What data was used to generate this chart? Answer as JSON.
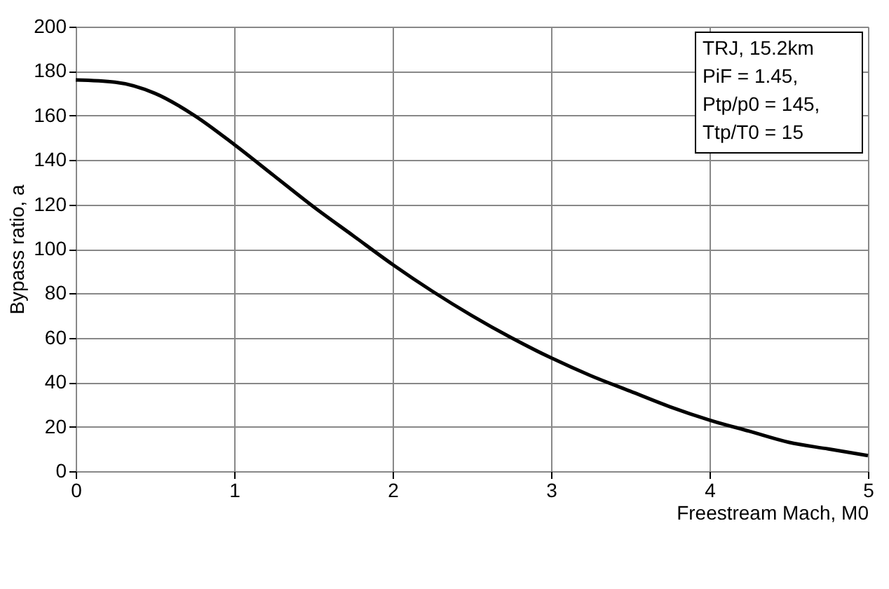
{
  "chart_data": {
    "type": "line",
    "xlabel": "Freestream Mach, M0",
    "ylabel": "Bypass ratio, a",
    "x": [
      0,
      0.25,
      0.5,
      0.75,
      1,
      1.25,
      1.5,
      1.75,
      2,
      2.25,
      2.5,
      2.75,
      3,
      3.25,
      3.5,
      3.75,
      4,
      4.25,
      4.5,
      4.75,
      5
    ],
    "series": [
      {
        "color": "#000000",
        "values": [
          176,
          175,
          170,
          160,
          147,
          133,
          119,
          106,
          93,
          81,
          70,
          60,
          51,
          43,
          36,
          29,
          23,
          18,
          13,
          10,
          7
        ]
      }
    ],
    "xlim": [
      0,
      5
    ],
    "xticks": [
      0,
      1,
      2,
      3,
      4,
      5
    ],
    "ylim": [
      0,
      200
    ],
    "yticks": [
      0,
      20,
      40,
      60,
      80,
      100,
      120,
      140,
      160,
      180,
      200
    ],
    "grid": true,
    "marker": "none",
    "line_style": "solid",
    "annotations": [
      "TRJ, 15.2km",
      "PiF = 1.45,",
      "Ptp/p0 = 145,",
      "Ttp/T0 = 15"
    ]
  }
}
